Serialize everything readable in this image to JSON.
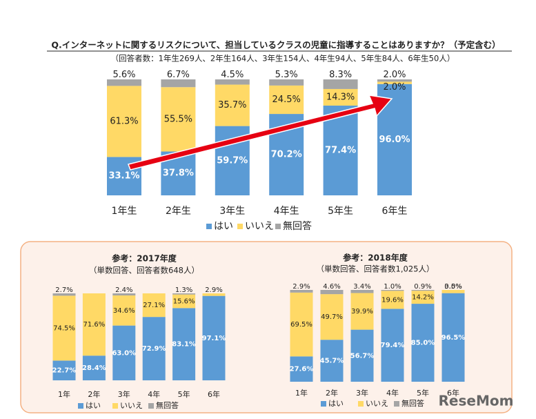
{
  "chart_data": [
    {
      "type": "stacked-bar",
      "title": "Q.インターネットに関するリスクについて、担当しているクラスの児童に指導することはありますか？（予定含む）",
      "subtitle": "（回答者数：1年生269人、2年生164人、3年生154人、4年生94人、5年生84人、6年生50人）",
      "categories": [
        "1年生",
        "2年生",
        "3年生",
        "4年生",
        "5年生",
        "6年生"
      ],
      "series": [
        {
          "name": "はい",
          "color": "#5b9bd5",
          "values": [
            33.1,
            37.8,
            59.7,
            70.2,
            77.4,
            96.0
          ],
          "value_labels": [
            "33.1%",
            "37.8%",
            "59.7%",
            "70.2%",
            "77.4%",
            "96.0%"
          ]
        },
        {
          "name": "いいえ",
          "color": "#ffd966",
          "values": [
            61.3,
            55.5,
            35.7,
            24.5,
            14.3,
            2.0
          ],
          "value_labels": [
            "61.3%",
            "55.5%",
            "35.7%",
            "24.5%",
            "14.3%",
            "2.0%"
          ]
        },
        {
          "name": "無回答",
          "color": "#a5a5a5",
          "values": [
            5.6,
            6.7,
            4.5,
            5.3,
            8.3,
            2.0
          ],
          "value_labels": [
            "5.6%",
            "6.7%",
            "4.5%",
            "5.3%",
            "8.3%",
            "2.0%"
          ]
        }
      ]
    },
    {
      "type": "stacked-bar",
      "title": "参考：2017年度",
      "subtitle": "（単数回答、回答者数648人）",
      "categories": [
        "1年",
        "2年",
        "3年",
        "4年",
        "5年",
        "6年"
      ],
      "series": [
        {
          "name": "はい",
          "color": "#5b9bd5",
          "values": [
            22.7,
            28.4,
            63.0,
            72.9,
            83.1,
            97.1
          ],
          "value_labels": [
            "22.7%",
            "28.4%",
            "63.0%",
            "72.9%",
            "83.1%",
            "97.1%"
          ]
        },
        {
          "name": "いいえ",
          "color": "#ffd966",
          "values": [
            74.5,
            71.6,
            34.6,
            27.1,
            15.6,
            2.9
          ],
          "value_labels": [
            "74.5%",
            "71.6%",
            "34.6%",
            "27.1%",
            "15.6%",
            "2.9%"
          ]
        },
        {
          "name": "無回答",
          "color": "#a5a5a5",
          "values": [
            2.7,
            null,
            2.4,
            null,
            1.3,
            null
          ],
          "value_labels": [
            "2.7%",
            null,
            "2.4%",
            null,
            "1.3%",
            null
          ]
        }
      ]
    },
    {
      "type": "stacked-bar",
      "title": "参考：2018年度",
      "subtitle": "（単数回答、回答者数1,025人）",
      "categories": [
        "1年",
        "2年",
        "3年",
        "4年",
        "5年",
        "6年"
      ],
      "series": [
        {
          "name": "はい",
          "color": "#5b9bd5",
          "values": [
            27.6,
            45.7,
            56.7,
            79.4,
            85.0,
            96.5
          ],
          "value_labels": [
            "27.6%",
            "45.7%",
            "56.7%",
            "79.4%",
            "85.0%",
            "96.5%"
          ]
        },
        {
          "name": "いいえ",
          "color": "#ffd966",
          "values": [
            69.5,
            49.7,
            39.9,
            19.6,
            14.2,
            3.5
          ],
          "value_labels": [
            "69.5%",
            "49.7%",
            "39.9%",
            "19.6%",
            "14.2%",
            "3.5%"
          ]
        },
        {
          "name": "無回答",
          "color": "#a5a5a5",
          "values": [
            2.9,
            4.6,
            3.4,
            1.0,
            0.9,
            0.0
          ],
          "value_labels": [
            "2.9%",
            "4.6%",
            "3.4%",
            "1.0%",
            "0.9%",
            "0.0%"
          ]
        }
      ]
    }
  ],
  "watermark": "ReseMom"
}
